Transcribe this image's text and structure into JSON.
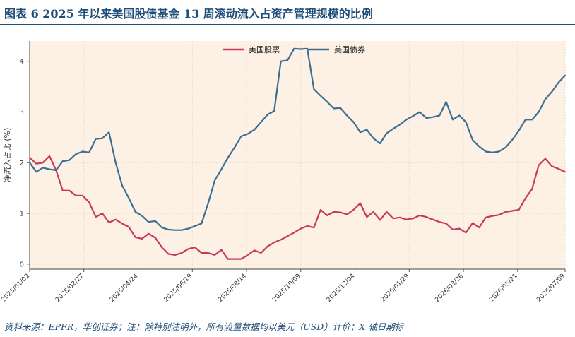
{
  "header": {
    "title": "图表 6   2025 年以来美国股债基金 13 周滚动流入占资产管理规模的比例"
  },
  "footer": {
    "source": "资料来源：EPFR，华创证券；注：除特别注明外，所有流量数据均以美元（USD）计价；X 轴日期标"
  },
  "colors": {
    "plot_bg": "#fdf1e6",
    "equity": "#c8385a",
    "bond": "#3b6e8f",
    "frame": "#1f4e79",
    "grid": "#e9d6c6"
  },
  "chart_data": {
    "type": "line",
    "ylabel": "净流入占比 (%)",
    "ylim": [
      -0.1,
      4.4
    ],
    "yticks": [
      0,
      1,
      2,
      3,
      4
    ],
    "xlim": [
      0,
      79
    ],
    "x_tick_labels": [
      "2025/01/02",
      "2025/02/27",
      "2025/04/24",
      "2025/06/19",
      "2025/08/14",
      "2025/10/09",
      "2025/12/04",
      "2026/01/29",
      "2026/03/26",
      "2026/05/21",
      "2026/07/09"
    ],
    "x_tick_positions": [
      0,
      8,
      16,
      24,
      32,
      40,
      48,
      56,
      64,
      72,
      79
    ],
    "legend_position": "top-center",
    "grid": true,
    "series": [
      {
        "name": "美国股票",
        "color": "#c8385a",
        "values": [
          2.1,
          1.98,
          2.0,
          2.13,
          1.85,
          1.45,
          1.45,
          1.35,
          1.35,
          1.22,
          0.93,
          1.0,
          0.82,
          0.88,
          0.8,
          0.73,
          0.53,
          0.5,
          0.6,
          0.52,
          0.33,
          0.2,
          0.18,
          0.22,
          0.3,
          0.33,
          0.22,
          0.22,
          0.18,
          0.28,
          0.1,
          0.1,
          0.1,
          0.18,
          0.27,
          0.22,
          0.35,
          0.43,
          0.48,
          0.55,
          0.62,
          0.7,
          0.75,
          0.72,
          1.07,
          0.96,
          1.03,
          1.02,
          0.98,
          1.07,
          1.2,
          0.93,
          1.03,
          0.87,
          1.03,
          0.9,
          0.92,
          0.88,
          0.9,
          0.96,
          0.93,
          0.88,
          0.83,
          0.8,
          0.68,
          0.7,
          0.62,
          0.81,
          0.72,
          0.92,
          0.95,
          0.97,
          1.03,
          1.05,
          1.07,
          1.3,
          1.48,
          1.95,
          2.08,
          1.93,
          1.88,
          1.82
        ]
      },
      {
        "name": "美国债券",
        "color": "#3b6e8f",
        "values": [
          2.0,
          1.82,
          1.9,
          1.87,
          1.85,
          2.03,
          2.05,
          2.17,
          2.22,
          2.2,
          2.47,
          2.48,
          2.6,
          2.0,
          1.55,
          1.3,
          1.03,
          0.95,
          0.83,
          0.85,
          0.72,
          0.68,
          0.67,
          0.67,
          0.7,
          0.75,
          0.8,
          1.2,
          1.65,
          1.87,
          2.1,
          2.3,
          2.52,
          2.57,
          2.65,
          2.8,
          2.95,
          3.02,
          4.0,
          4.02,
          4.25,
          4.24,
          4.25,
          3.45,
          3.32,
          3.2,
          3.07,
          3.08,
          2.93,
          2.8,
          2.6,
          2.65,
          2.48,
          2.38,
          2.58,
          2.67,
          2.75,
          2.85,
          2.92,
          3.0,
          2.88,
          2.9,
          2.93,
          3.2,
          2.85,
          2.93,
          2.8,
          2.45,
          2.32,
          2.22,
          2.2,
          2.22,
          2.3,
          2.45,
          2.63,
          2.85,
          2.85,
          3.0,
          3.25,
          3.4,
          3.58,
          3.72
        ]
      }
    ]
  }
}
